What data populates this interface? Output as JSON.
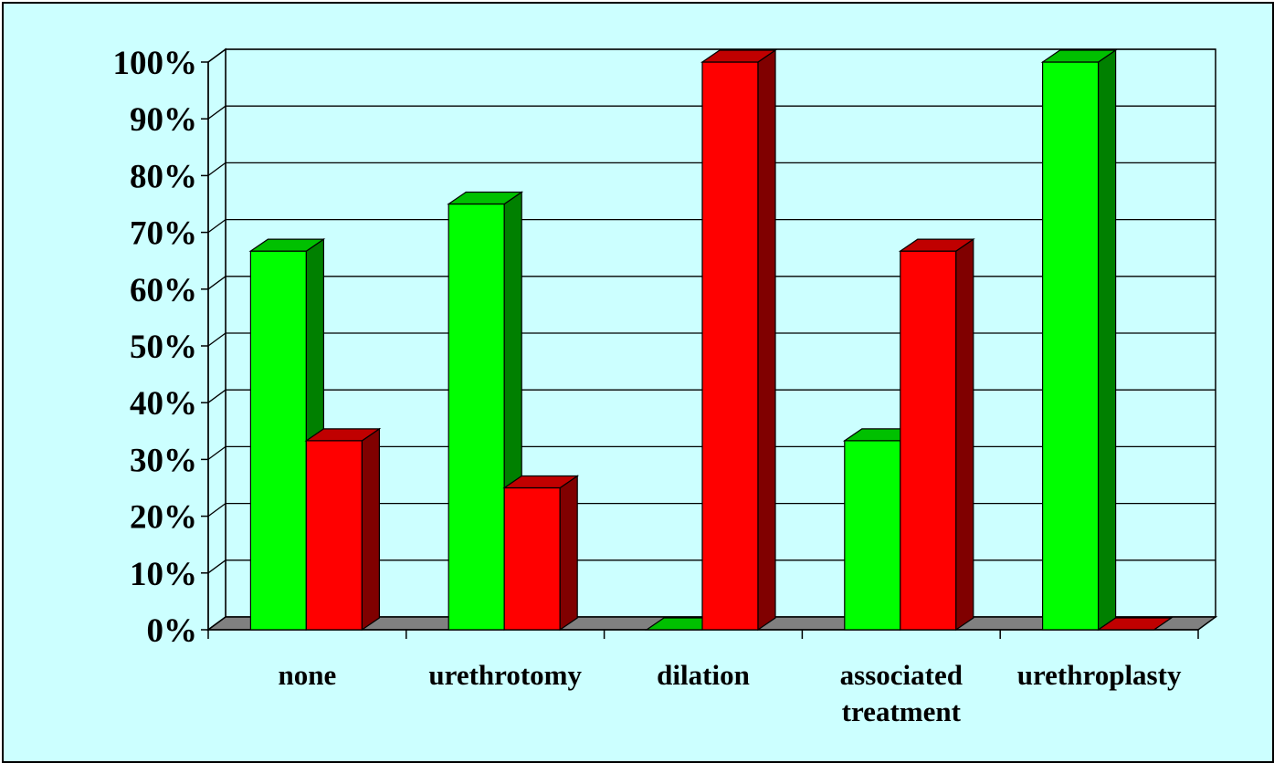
{
  "chart_data": {
    "type": "bar",
    "style": "3d-clustered-column",
    "categories": [
      "none",
      "urethrotomy",
      "dilation",
      "associated treatment",
      "urethroplasty"
    ],
    "category_lines": [
      [
        "none"
      ],
      [
        "urethrotomy"
      ],
      [
        "dilation"
      ],
      [
        "associated",
        "treatment"
      ],
      [
        "urethroplasty"
      ]
    ],
    "series": [
      {
        "values": [
          66.7,
          75,
          0,
          33.3,
          100
        ],
        "color": "#00ff00",
        "side_color": "#008000"
      },
      {
        "values": [
          33.3,
          25,
          100,
          66.7,
          0
        ],
        "color": "#ff0000",
        "side_color": "#800000"
      }
    ],
    "ylim": [
      0,
      100
    ],
    "y_ticks": [
      "0%",
      "10%",
      "20%",
      "30%",
      "40%",
      "50%",
      "60%",
      "70%",
      "80%",
      "90%",
      "100%"
    ],
    "grid": true,
    "legend": "none",
    "colors": {
      "plot_background": "#ccffff",
      "floor": "#808080",
      "gridline": "#000000"
    }
  }
}
